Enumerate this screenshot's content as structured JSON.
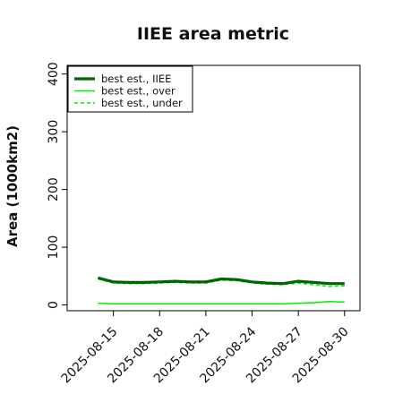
{
  "chart_data": {
    "type": "line",
    "title": "IIEE area metric",
    "xlabel": "",
    "ylabel": "Area (1000km2)",
    "x": [
      "2025-08-14",
      "2025-08-15",
      "2025-08-16",
      "2025-08-17",
      "2025-08-18",
      "2025-08-19",
      "2025-08-20",
      "2025-08-21",
      "2025-08-22",
      "2025-08-23",
      "2025-08-24",
      "2025-08-25",
      "2025-08-26",
      "2025-08-27",
      "2025-08-28",
      "2025-08-29",
      "2025-08-30"
    ],
    "xticks": [
      "2025-08-15",
      "2025-08-18",
      "2025-08-21",
      "2025-08-24",
      "2025-08-27",
      "2025-08-30"
    ],
    "xlim": [
      "2025-08-12",
      "2025-08-31"
    ],
    "ylim": [
      -10,
      415
    ],
    "yticks": [
      0,
      100,
      200,
      300,
      400
    ],
    "grid": false,
    "legend_position": "top-left",
    "series": [
      {
        "name": "best est., IIEE",
        "color": "#006400",
        "style": "solid-thick",
        "values": [
          47,
          40,
          39,
          39,
          40,
          41,
          40,
          40,
          45,
          44,
          40,
          38,
          37,
          41,
          39,
          37,
          37
        ]
      },
      {
        "name": "best est., over",
        "color": "#00ee00",
        "style": "solid",
        "values": [
          3,
          2,
          2,
          2,
          2,
          2,
          2,
          2,
          2,
          2,
          2,
          2,
          2,
          3,
          4,
          6,
          5
        ]
      },
      {
        "name": "best est., under",
        "color": "#00ee00",
        "style": "dashed",
        "values": [
          45,
          38,
          37,
          37,
          38,
          39,
          38,
          38,
          43,
          42,
          38,
          36,
          35,
          38,
          35,
          32,
          33
        ]
      }
    ]
  }
}
